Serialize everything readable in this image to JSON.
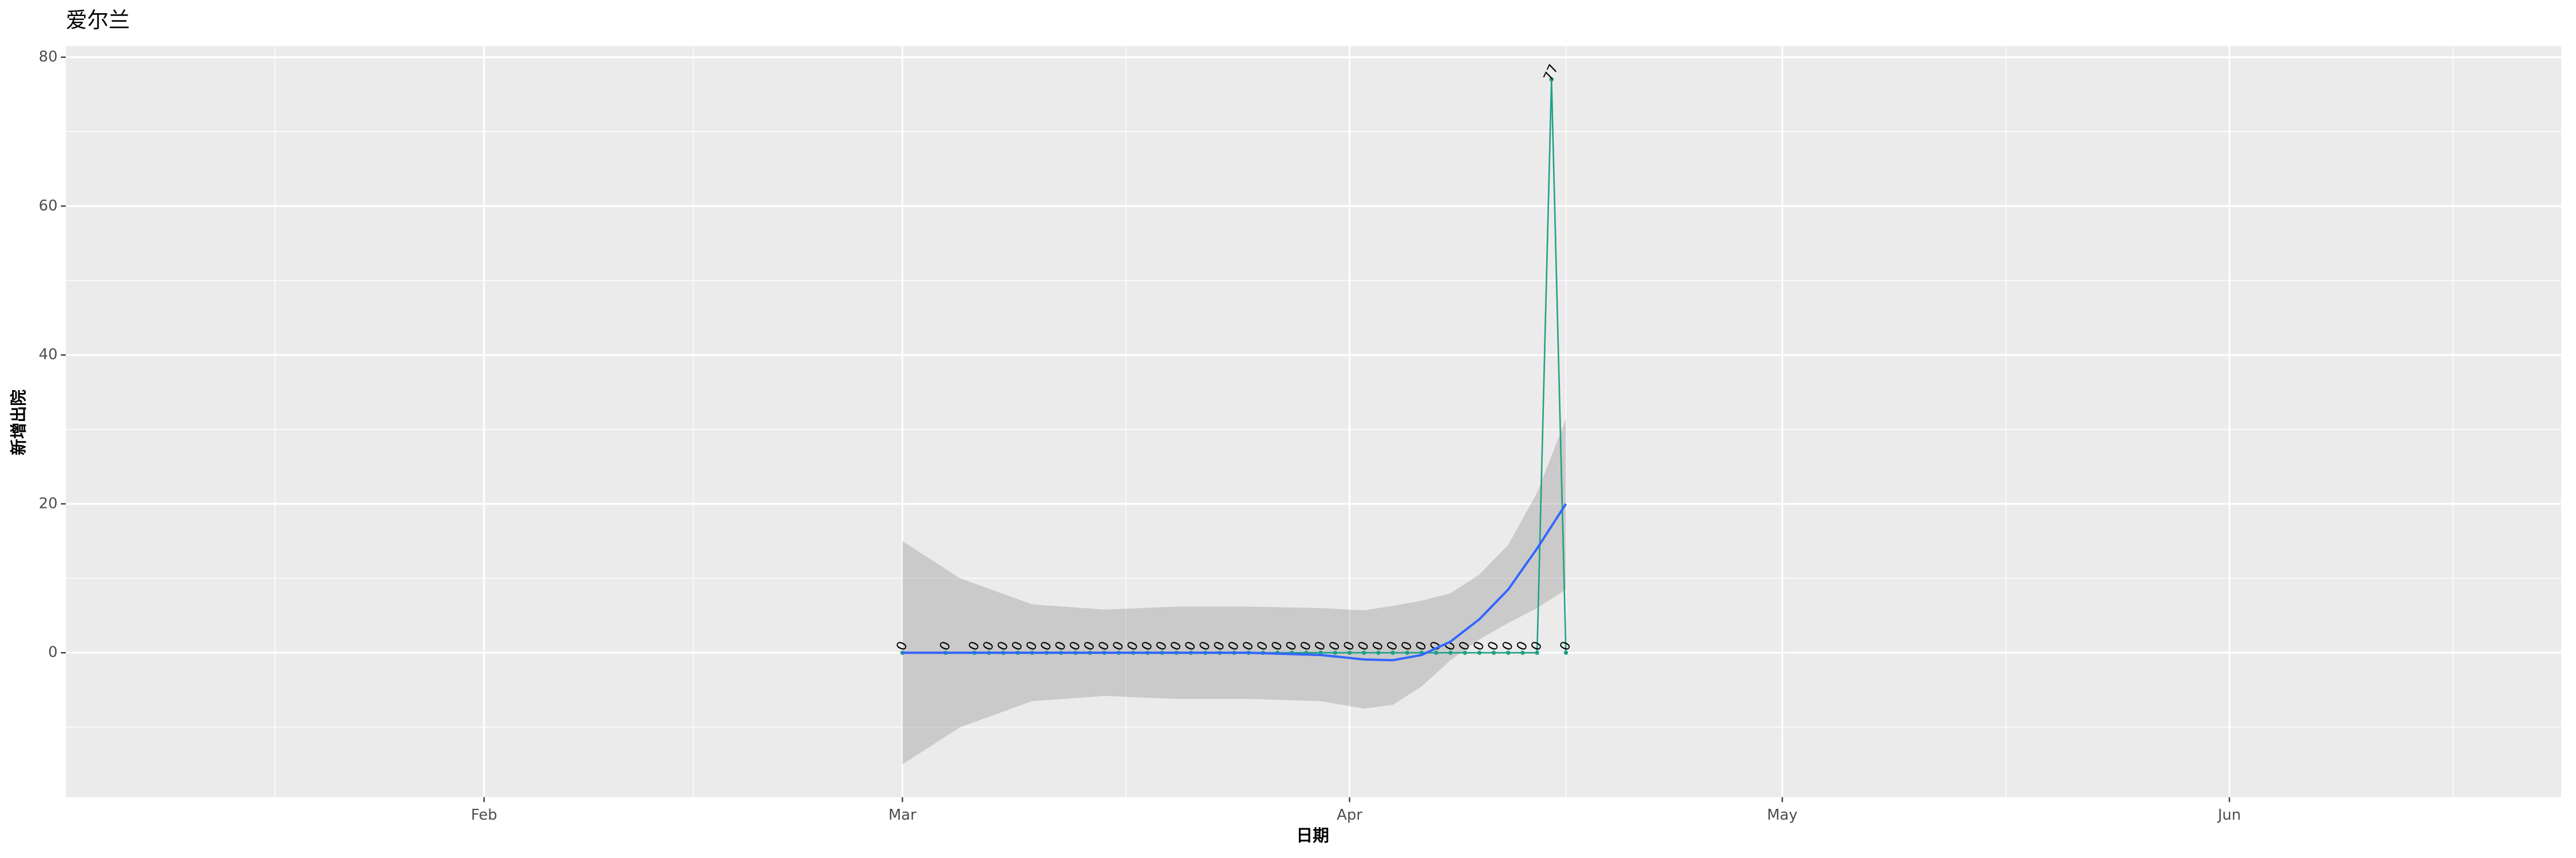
{
  "chart_data": {
    "type": "line",
    "title": "爱尔兰",
    "x_label": "日期",
    "y_label": "新增出院",
    "x": [
      "03-01",
      "03-04",
      "03-06",
      "03-07",
      "03-08",
      "03-09",
      "03-10",
      "03-11",
      "03-12",
      "03-13",
      "03-14",
      "03-15",
      "03-16",
      "03-17",
      "03-18",
      "03-19",
      "03-20",
      "03-21",
      "03-22",
      "03-23",
      "03-24",
      "03-25",
      "03-26",
      "03-27",
      "03-28",
      "03-29",
      "03-30",
      "03-31",
      "04-01",
      "04-02",
      "04-03",
      "04-04",
      "04-05",
      "04-06",
      "04-07",
      "04-08",
      "04-09",
      "04-10",
      "04-11",
      "04-12",
      "04-13",
      "04-14",
      "04-15",
      "04-16"
    ],
    "series": [
      {
        "color": "#1fa187",
        "values": [
          0,
          0,
          0,
          0,
          0,
          0,
          0,
          0,
          0,
          0,
          0,
          0,
          0,
          0,
          0,
          0,
          0,
          0,
          0,
          0,
          0,
          0,
          0,
          0,
          0,
          0,
          0,
          0,
          0,
          0,
          0,
          0,
          0,
          0,
          0,
          0,
          0,
          0,
          0,
          0,
          0,
          0,
          77,
          0
        ]
      }
    ],
    "smooth": {
      "color": "#3366ff",
      "fill": "#999999",
      "x": [
        "03-01",
        "03-05",
        "03-10",
        "03-15",
        "03-20",
        "03-25",
        "03-30",
        "04-02",
        "04-04",
        "04-06",
        "04-08",
        "04-10",
        "04-12",
        "04-14",
        "04-16"
      ],
      "values": [
        0,
        0,
        0,
        0,
        0,
        0,
        -0.3,
        -0.9,
        -1,
        -0.3,
        1.5,
        4.5,
        8.5,
        14,
        20
      ],
      "upper": [
        15,
        10,
        6.5,
        5.8,
        6.2,
        6.2,
        6,
        5.7,
        6.3,
        7,
        8,
        10.5,
        14.5,
        21.5,
        31.4
      ],
      "lower": [
        -15,
        -10,
        -6.5,
        -5.8,
        -6.2,
        -6.2,
        -6.5,
        -7.5,
        -7,
        -4.5,
        -1,
        1.8,
        4,
        6,
        8.5
      ]
    },
    "xlim": [
      "01-03",
      "06-24"
    ],
    "xticks": [
      {
        "value": "02-01",
        "label": "Feb"
      },
      {
        "value": "03-01",
        "label": "Mar"
      },
      {
        "value": "04-01",
        "label": "Apr"
      },
      {
        "value": "05-01",
        "label": "May"
      },
      {
        "value": "06-01",
        "label": "Jun"
      }
    ],
    "ylim": [
      -19.4,
      81.5
    ],
    "yticks": [
      0,
      20,
      40,
      60,
      80
    ],
    "grid": true
  }
}
